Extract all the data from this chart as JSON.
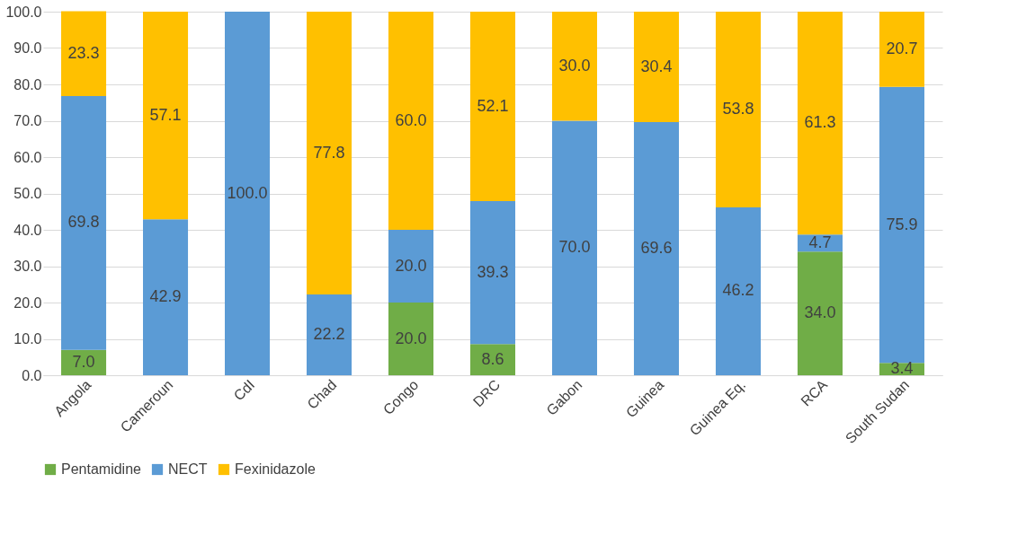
{
  "chart_data": {
    "type": "bar",
    "stacked": true,
    "categories": [
      "Angola",
      "Cameroun",
      "CdI",
      "Chad",
      "Congo",
      "DRC",
      "Gabon",
      "Guinea",
      "Guinea Eq.",
      "RCA",
      "South Sudan"
    ],
    "series": [
      {
        "name": "Pentamidine",
        "color": "#70ad47",
        "values": [
          7.0,
          null,
          null,
          null,
          20.0,
          8.6,
          null,
          null,
          null,
          34.0,
          3.4
        ],
        "value_labels": [
          "7.0",
          null,
          null,
          null,
          "20.0",
          "8.6",
          null,
          null,
          null,
          "34.0",
          "3.4"
        ]
      },
      {
        "name": "NECT",
        "color": "#5b9bd5",
        "values": [
          69.8,
          42.9,
          100.0,
          22.2,
          20.0,
          39.3,
          70.0,
          69.6,
          46.2,
          4.7,
          75.9
        ],
        "value_labels": [
          "69.8",
          "42.9",
          "100.0",
          "22.2",
          "20.0",
          "39.3",
          "70.0",
          "69.6",
          "46.2",
          "4.7",
          "75.9"
        ]
      },
      {
        "name": "Fexinidazole",
        "color": "#ffc000",
        "values": [
          23.3,
          57.1,
          null,
          77.8,
          60.0,
          52.1,
          30.0,
          30.4,
          53.8,
          61.3,
          20.7
        ],
        "value_labels": [
          "23.3",
          "57.1",
          null,
          "77.8",
          "60.0",
          "52.1",
          "30.0",
          "30.4",
          "53.8",
          "61.3",
          "20.7"
        ]
      }
    ],
    "ylim": [
      0,
      100
    ],
    "yticks": [
      {
        "value": 0,
        "label": "0.0"
      },
      {
        "value": 10,
        "label": "10.0"
      },
      {
        "value": 20,
        "label": "20.0"
      },
      {
        "value": 30,
        "label": "30.0"
      },
      {
        "value": 40,
        "label": "40.0"
      },
      {
        "value": 50,
        "label": "50.0"
      },
      {
        "value": 60,
        "label": "60.0"
      },
      {
        "value": 70,
        "label": "70.0"
      },
      {
        "value": 80,
        "label": "80.0"
      },
      {
        "value": 90,
        "label": "90.0"
      },
      {
        "value": 100,
        "label": "100.0"
      }
    ],
    "grid": "y",
    "legend": "bottom"
  }
}
